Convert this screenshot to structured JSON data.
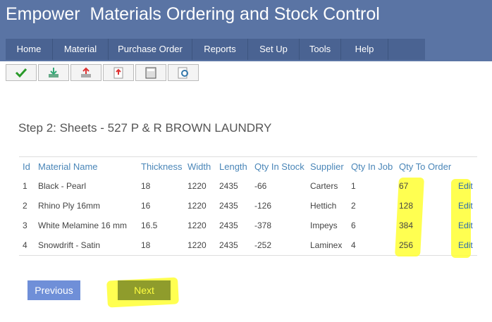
{
  "header": {
    "title": "Empower  Materials Ordering and Stock Control"
  },
  "nav": [
    "Home",
    "Material",
    "Purchase Order",
    "Reports",
    "Set Up",
    "Tools",
    "Help"
  ],
  "heading": "Step 2: Sheets - 527 P & R BROWN LAUNDRY",
  "table": {
    "columns": [
      "Id",
      "Material Name",
      "Thickness",
      "Width",
      "Length",
      "Qty In Stock",
      "Supplier",
      "Qty In Job",
      "Qty To Order"
    ],
    "rows": [
      [
        "1",
        "Black - Pearl",
        "18",
        "1220",
        "2435",
        "-66",
        "Carters",
        "1",
        "67",
        "Edit"
      ],
      [
        "2",
        "Rhino Ply 16mm",
        "16",
        "1220",
        "2435",
        "-126",
        "Hettich",
        "2",
        "128",
        "Edit"
      ],
      [
        "3",
        "White Melamine 16 mm",
        "16.5",
        "1220",
        "2435",
        "-378",
        "Impeys",
        "6",
        "384",
        "Edit"
      ],
      [
        "4",
        "Snowdrift - Satin",
        "18",
        "1220",
        "2435",
        "-252",
        "Laminex",
        "4",
        "256",
        "Edit"
      ]
    ]
  },
  "buttons": {
    "previous": "Previous",
    "next": "Next"
  }
}
